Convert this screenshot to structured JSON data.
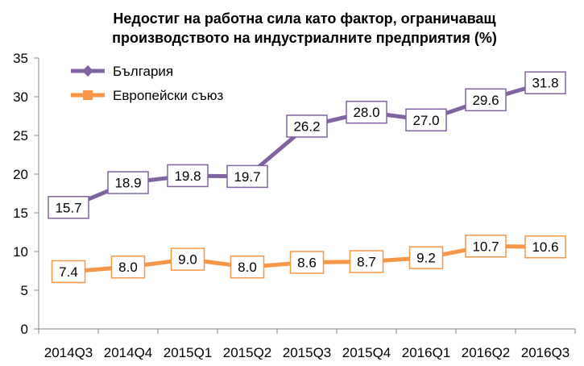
{
  "chart_data": {
    "type": "line",
    "title_lines": [
      "Недостиг на работна сила като фактор, ограничаващ",
      "производството на индустриалните предприятия (%)"
    ],
    "categories": [
      "2014Q3",
      "2014Q4",
      "2015Q1",
      "2015Q2",
      "2015Q3",
      "2015Q4",
      "2016Q1",
      "2016Q2",
      "2016Q3"
    ],
    "ylim": [
      0,
      35
    ],
    "yticks": [
      0,
      5,
      10,
      15,
      20,
      25,
      30,
      35
    ],
    "grid": false,
    "legend": "top-left",
    "series": [
      {
        "name": "България",
        "color": "#8064A2",
        "marker": "diamond",
        "values": [
          15.7,
          18.9,
          19.8,
          19.7,
          26.2,
          28.0,
          27.0,
          29.6,
          31.8
        ],
        "labels": [
          "15.7",
          "18.9",
          "19.8",
          "19.7",
          "26.2",
          "28.0",
          "27.0",
          "29.6",
          "31.8"
        ]
      },
      {
        "name": "Европейски съюз",
        "color": "#F79646",
        "marker": "square",
        "values": [
          7.4,
          8.0,
          9.0,
          8.0,
          8.6,
          8.7,
          9.2,
          10.7,
          10.6
        ],
        "labels": [
          "7.4",
          "8.0",
          "9.0",
          "8.0",
          "8.6",
          "8.7",
          "9.2",
          "10.7",
          "10.6"
        ]
      }
    ]
  }
}
